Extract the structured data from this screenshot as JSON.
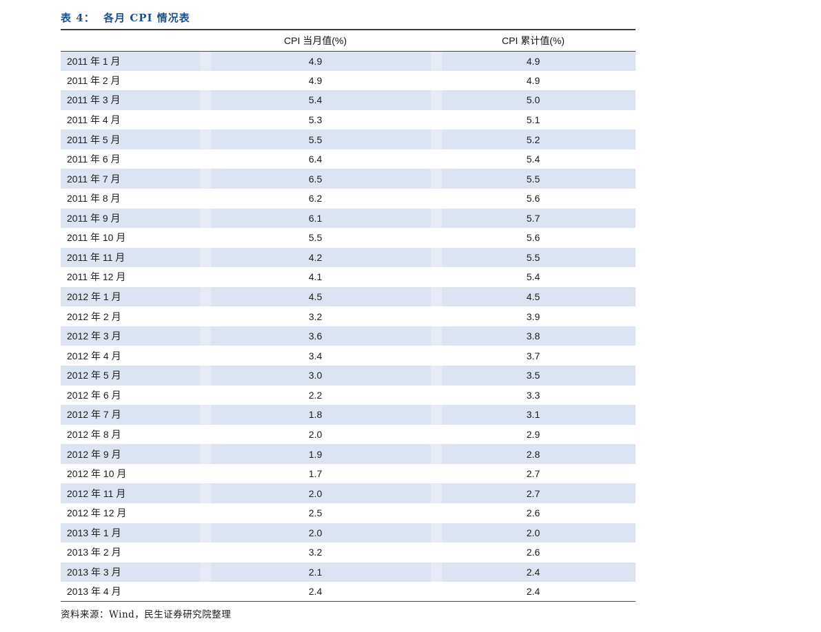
{
  "page": {
    "title": "表 4：  各月 CPI 情况表",
    "source_note": "资料来源：Wind，民生证券研究院整理"
  },
  "colors": {
    "title": "#1a4f8b",
    "row_stripe": "#dce3f1",
    "rule": "#4a4a4a"
  },
  "table": {
    "columns": [
      "",
      "CPI 当月值(%)",
      "CPI 累计值(%)"
    ],
    "rows": [
      [
        "2011 年 1 月",
        "4.9",
        "4.9"
      ],
      [
        "2011 年 2 月",
        "4.9",
        "4.9"
      ],
      [
        "2011 年 3 月",
        "5.4",
        "5.0"
      ],
      [
        "2011 年 4 月",
        "5.3",
        "5.1"
      ],
      [
        "2011 年 5 月",
        "5.5",
        "5.2"
      ],
      [
        "2011 年 6 月",
        "6.4",
        "5.4"
      ],
      [
        "2011 年 7 月",
        "6.5",
        "5.5"
      ],
      [
        "2011 年 8 月",
        "6.2",
        "5.6"
      ],
      [
        "2011 年 9 月",
        "6.1",
        "5.7"
      ],
      [
        "2011 年 10 月",
        "5.5",
        "5.6"
      ],
      [
        "2011 年 11 月",
        "4.2",
        "5.5"
      ],
      [
        "2011 年 12 月",
        "4.1",
        "5.4"
      ],
      [
        "2012 年 1 月",
        "4.5",
        "4.5"
      ],
      [
        "2012 年 2 月",
        "3.2",
        "3.9"
      ],
      [
        "2012 年 3 月",
        "3.6",
        "3.8"
      ],
      [
        "2012 年 4 月",
        "3.4",
        "3.7"
      ],
      [
        "2012 年 5 月",
        "3.0",
        "3.5"
      ],
      [
        "2012 年 6 月",
        "2.2",
        "3.3"
      ],
      [
        "2012 年 7 月",
        "1.8",
        "3.1"
      ],
      [
        "2012 年 8 月",
        "2.0",
        "2.9"
      ],
      [
        "2012 年 9 月",
        "1.9",
        "2.8"
      ],
      [
        "2012 年 10 月",
        "1.7",
        "2.7"
      ],
      [
        "2012 年 11 月",
        "2.0",
        "2.7"
      ],
      [
        "2012 年 12 月",
        "2.5",
        "2.6"
      ],
      [
        "2013 年 1 月",
        "2.0",
        "2.0"
      ],
      [
        "2013 年 2 月",
        "3.2",
        "2.6"
      ],
      [
        "2013 年 3 月",
        "2.1",
        "2.4"
      ],
      [
        "2013 年 4 月",
        "2.4",
        "2.4"
      ]
    ]
  }
}
